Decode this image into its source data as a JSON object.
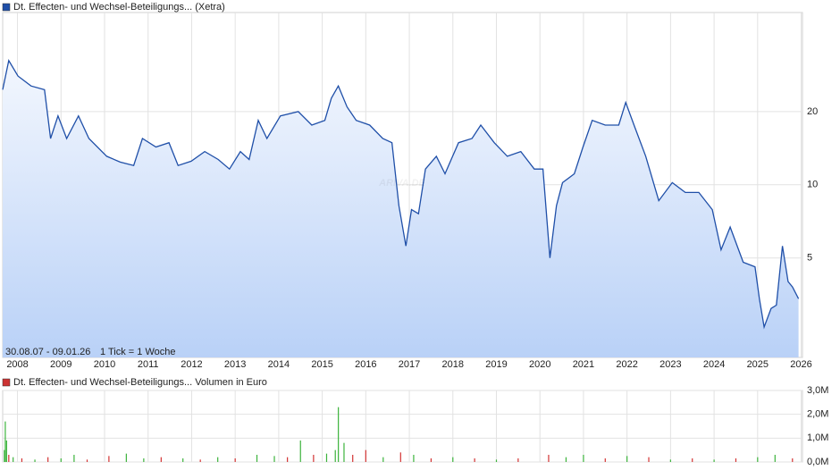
{
  "chart_data": [
    {
      "type": "line",
      "series": [
        {
          "name": "Dt. Effecten- und Wechsel-Beteiligungs... (Xetra)",
          "color": "#1f4fa8",
          "x": [
            2007.66,
            2007.8,
            2008.01,
            2008.31,
            2008.62,
            2008.76,
            2008.93,
            2009.13,
            2009.4,
            2009.64,
            2010.05,
            2010.36,
            2010.67,
            2010.87,
            2011.18,
            2011.48,
            2011.69,
            2011.99,
            2012.3,
            2012.61,
            2012.87,
            2013.12,
            2013.32,
            2013.53,
            2013.73,
            2014.04,
            2014.45,
            2014.76,
            2015.06,
            2015.21,
            2015.37,
            2015.57,
            2015.78,
            2016.09,
            2016.39,
            2016.6,
            2016.76,
            2016.92,
            2017.05,
            2017.21,
            2017.37,
            2017.62,
            2017.82,
            2018.13,
            2018.44,
            2018.64,
            2018.95,
            2019.25,
            2019.56,
            2019.87,
            2020.07,
            2020.15,
            2020.23,
            2020.38,
            2020.52,
            2020.79,
            2020.99,
            2021.2,
            2021.5,
            2021.81,
            2021.97,
            2022.16,
            2022.43,
            2022.73,
            2023.04,
            2023.34,
            2023.65,
            2023.96,
            2024.16,
            2024.37,
            2024.67,
            2024.94,
            2025.04,
            2025.15,
            2025.31,
            2025.43,
            2025.57,
            2025.7,
            2025.8,
            2025.94
          ],
          "values": [
            24.6,
            32.4,
            28,
            25.5,
            24.6,
            15.5,
            19.2,
            15.5,
            19.2,
            15.5,
            13.1,
            12.4,
            12.0,
            15.5,
            14.3,
            14.9,
            12.0,
            12.5,
            13.7,
            12.7,
            11.6,
            13.7,
            12.7,
            18.4,
            15.5,
            19.2,
            20,
            17.6,
            18.4,
            22.7,
            25.5,
            20.9,
            18.4,
            17.6,
            15.5,
            14.9,
            8.2,
            5.6,
            7.9,
            7.6,
            11.6,
            13.1,
            11.1,
            14.9,
            15.5,
            17.6,
            14.9,
            13.1,
            13.7,
            11.6,
            11.6,
            7.6,
            5.0,
            8.2,
            10.2,
            11.1,
            14.3,
            18.4,
            17.6,
            17.6,
            21.8,
            17.6,
            13.1,
            8.6,
            10.2,
            9.3,
            9.3,
            7.9,
            5.4,
            6.7,
            4.8,
            4.6,
            3.4,
            2.6,
            3.1,
            3.2,
            5.6,
            4.0,
            3.8,
            3.4
          ]
        }
      ],
      "xlim": [
        2007.66,
        2026.03
      ],
      "xticks": [
        2008,
        2009,
        2010,
        2011,
        2012,
        2013,
        2014,
        2015,
        2016,
        2017,
        2018,
        2019,
        2020,
        2021,
        2022,
        2023,
        2024,
        2025,
        2026
      ],
      "ylim": [
        1.95,
        51.1
      ],
      "yticks": [
        5,
        10,
        20
      ],
      "log_y": true,
      "grid": true,
      "range_label": "30.08.07 - 09.01.26",
      "tick_label": "1 Tick = 1 Woche",
      "watermark": "ARIVA.DE"
    },
    {
      "type": "bar",
      "series": [
        {
          "name": "Dt. Effecten- und Wechsel-Beteiligungs... Volumen in Euro",
          "color": "#cc3333",
          "x": [
            2007.7,
            2007.72,
            2007.75,
            2007.8,
            2007.9,
            2008.1,
            2008.4,
            2008.7,
            2009.0,
            2009.3,
            2009.6,
            2010.1,
            2010.5,
            2010.9,
            2011.3,
            2011.8,
            2012.2,
            2012.6,
            2013.0,
            2013.5,
            2013.9,
            2014.2,
            2014.5,
            2014.8,
            2015.1,
            2015.3,
            2015.37,
            2015.5,
            2015.7,
            2016.0,
            2016.4,
            2016.8,
            2017.1,
            2017.5,
            2018.0,
            2018.5,
            2019.0,
            2019.5,
            2020.2,
            2020.6,
            2021.0,
            2021.5,
            2022.0,
            2022.5,
            2023.0,
            2023.5,
            2024.0,
            2024.5,
            2025.0,
            2025.4,
            2025.8
          ],
          "values": [
            500000,
            1700000,
            900000,
            300000,
            200000,
            150000,
            100000,
            200000,
            150000,
            300000,
            100000,
            250000,
            350000,
            150000,
            200000,
            150000,
            100000,
            200000,
            150000,
            300000,
            250000,
            200000,
            900000,
            300000,
            350000,
            500000,
            2300000,
            800000,
            300000,
            500000,
            200000,
            400000,
            300000,
            150000,
            200000,
            150000,
            100000,
            150000,
            300000,
            200000,
            300000,
            150000,
            250000,
            200000,
            100000,
            150000,
            100000,
            150000,
            200000,
            300000,
            150000
          ],
          "colors": [
            "#3cb33c",
            "#3cb33c",
            "#3cb33c",
            "#d33333",
            "#3cb33c",
            "#d33333",
            "#3cb33c",
            "#d33333",
            "#3cb33c",
            "#3cb33c",
            "#d33333",
            "#d33333",
            "#3cb33c",
            "#3cb33c",
            "#d33333",
            "#3cb33c",
            "#d33333",
            "#3cb33c",
            "#d33333",
            "#3cb33c",
            "#3cb33c",
            "#d33333",
            "#3cb33c",
            "#d33333",
            "#3cb33c",
            "#3cb33c",
            "#3cb33c",
            "#3cb33c",
            "#d33333",
            "#d33333",
            "#3cb33c",
            "#d33333",
            "#3cb33c",
            "#d33333",
            "#3cb33c",
            "#d33333",
            "#3cb33c",
            "#d33333",
            "#d33333",
            "#3cb33c",
            "#3cb33c",
            "#d33333",
            "#3cb33c",
            "#d33333",
            "#3cb33c",
            "#d33333",
            "#3cb33c",
            "#d33333",
            "#3cb33c",
            "#3cb33c",
            "#d33333"
          ]
        }
      ],
      "xlim": [
        2007.66,
        2026.03
      ],
      "xticks": [
        2008,
        2009,
        2010,
        2011,
        2012,
        2013,
        2014,
        2015,
        2016,
        2017,
        2018,
        2019,
        2020,
        2021,
        2022,
        2023,
        2024,
        2025,
        2026
      ],
      "ylim": [
        0,
        3000000
      ],
      "yticks": [
        {
          "value": 0,
          "label": "0,0M"
        },
        {
          "value": 1000000,
          "label": "1,0M"
        },
        {
          "value": 2000000,
          "label": "2,0M"
        },
        {
          "value": 3000000,
          "label": "3,0M"
        }
      ],
      "grid": true
    }
  ]
}
